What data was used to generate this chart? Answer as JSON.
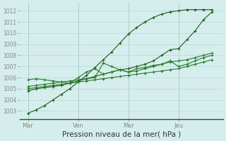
{
  "background_color": "#d5eeed",
  "grid_color": "#b8d8d4",
  "line_color_dark": "#1a5c1a",
  "line_color_medium": "#2a7a2a",
  "xlabel": "Pression niveau de la mer( hPa )",
  "xlabel_fontsize": 7.5,
  "ytick_values": [
    1003,
    1004,
    1005,
    1006,
    1007,
    1008,
    1009,
    1010,
    1011,
    1012
  ],
  "xtick_labels": [
    "Mar",
    "Ven",
    "Mer",
    "Jeu"
  ],
  "xtick_positions": [
    0,
    18,
    36,
    54
  ],
  "ylim": [
    1002.3,
    1012.7
  ],
  "xlim": [
    -3,
    70
  ],
  "vline_color": "#8ab0aa",
  "series_x": [
    0,
    3,
    6,
    9,
    12,
    15,
    18,
    21,
    24,
    27,
    30,
    33,
    36,
    39,
    42,
    45,
    48,
    51,
    54,
    57,
    60,
    63,
    66
  ],
  "series": [
    [
      1002.8,
      1003.1,
      1003.5,
      1004.0,
      1004.5,
      1005.0,
      1005.6,
      1006.2,
      1006.9,
      1007.6,
      1008.3,
      1009.1,
      1009.9,
      1010.5,
      1011.0,
      1011.4,
      1011.7,
      1011.9,
      1012.0,
      1012.1,
      1012.1,
      1012.1,
      1012.1
    ],
    [
      1004.8,
      1005.0,
      1005.1,
      1005.2,
      1005.3,
      1005.5,
      1005.7,
      1005.9,
      1006.1,
      1006.3,
      1006.5,
      1006.7,
      1006.8,
      1007.0,
      1007.2,
      1007.5,
      1008.0,
      1008.5,
      1008.6,
      1009.4,
      1010.2,
      1011.2,
      1011.9
    ],
    [
      1005.8,
      1005.9,
      1005.8,
      1005.7,
      1005.6,
      1005.5,
      1006.0,
      1006.5,
      1006.8,
      1006.3,
      1006.5,
      1006.7,
      1006.5,
      1006.8,
      1006.9,
      1007.1,
      1007.2,
      1007.5,
      1007.0,
      1007.2,
      1007.5,
      1007.8,
      1008.0
    ],
    [
      1005.0,
      1005.1,
      1005.2,
      1005.3,
      1005.4,
      1005.5,
      1005.6,
      1005.7,
      1005.8,
      1005.9,
      1006.0,
      1006.1,
      1006.2,
      1006.3,
      1006.4,
      1006.5,
      1006.6,
      1006.7,
      1006.8,
      1007.0,
      1007.2,
      1007.4,
      1007.6
    ],
    [
      1005.2,
      1005.3,
      1005.4,
      1005.5,
      1005.6,
      1005.7,
      1005.8,
      1005.9,
      1006.0,
      1007.3,
      1007.0,
      1006.7,
      1006.5,
      1006.6,
      1006.8,
      1007.0,
      1007.2,
      1007.4,
      1007.5,
      1007.6,
      1007.8,
      1008.0,
      1008.2
    ]
  ]
}
